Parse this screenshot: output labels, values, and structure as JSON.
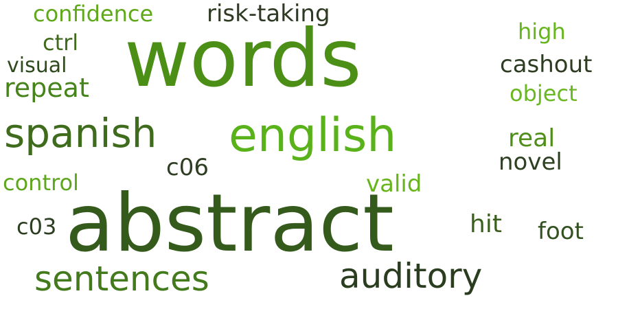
{
  "words": [
    {
      "id": "words",
      "text": "words",
      "color": "#4b8f16"
    },
    {
      "id": "abstract",
      "text": "abstract",
      "color": "#345a1c"
    },
    {
      "id": "english",
      "text": "english",
      "color": "#5ab21a"
    },
    {
      "id": "spanish",
      "text": "spanish",
      "color": "#3f6b1d"
    },
    {
      "id": "sentences",
      "text": "sentences",
      "color": "#437a1c"
    },
    {
      "id": "auditory",
      "text": "auditory",
      "color": "#2b3d1f"
    },
    {
      "id": "risk-taking",
      "text": "risk-taking",
      "color": "#2e3a23"
    },
    {
      "id": "confidence",
      "text": "confidence",
      "color": "#5fa81b"
    },
    {
      "id": "repeat",
      "text": "repeat",
      "color": "#46841b"
    },
    {
      "id": "ctrl",
      "text": "ctrl",
      "color": "#3f6a1c"
    },
    {
      "id": "visual",
      "text": "visual",
      "color": "#2f4b1e"
    },
    {
      "id": "high",
      "text": "high",
      "color": "#67b51c"
    },
    {
      "id": "cashout",
      "text": "cashout",
      "color": "#2e3d22"
    },
    {
      "id": "object",
      "text": "object",
      "color": "#69b81f"
    },
    {
      "id": "real",
      "text": "real",
      "color": "#4f8f19"
    },
    {
      "id": "novel",
      "text": "novel",
      "color": "#2d4020"
    },
    {
      "id": "c06",
      "text": "c06",
      "color": "#2f3e22"
    },
    {
      "id": "control",
      "text": "control",
      "color": "#5ea61e"
    },
    {
      "id": "valid",
      "text": "valid",
      "color": "#67b51d"
    },
    {
      "id": "c03",
      "text": "c03",
      "color": "#2c3d21"
    },
    {
      "id": "hit",
      "text": "hit",
      "color": "#3a5f1d"
    },
    {
      "id": "foot",
      "text": "foot",
      "color": "#335121"
    }
  ]
}
